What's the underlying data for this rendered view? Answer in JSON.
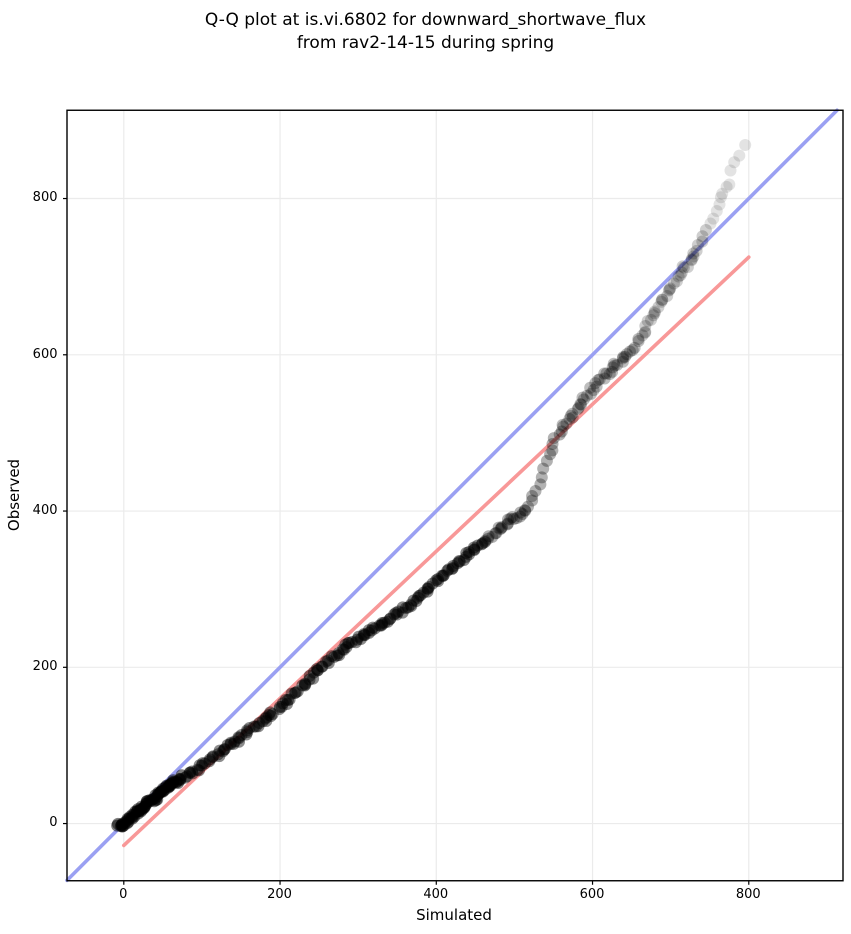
{
  "figure": {
    "title": "Q-Q plot at is.vi.6802 for downward_shortwave_flux\nfrom rav2-14-15 during spring"
  },
  "chart_data": {
    "type": "scatter",
    "subtype": "qq-plot",
    "title": "Q-Q plot at is.vi.6802 for downward_shortwave_flux from rav2-14-15 during spring",
    "xlabel": "Simulated",
    "ylabel": "Observed",
    "x_range": [
      -72.7,
      920.6
    ],
    "y_range": [
      -73.2,
      913.0
    ],
    "x_ticks": [
      0,
      200,
      400,
      600,
      800
    ],
    "y_ticks": [
      0,
      200,
      400,
      600,
      800
    ],
    "grid": true,
    "grid_color": "#ebebeb",
    "background_color": "#ffffff",
    "spine_color": "#000000",
    "identity_line": {
      "slope": 1,
      "intercept": 0,
      "color": "#9aa0f2",
      "width": 3.6
    },
    "fit_line": {
      "x1": 0,
      "y1": -28,
      "x2": 800,
      "y2": 725,
      "color": "#f89898",
      "width": 3.6
    },
    "marker": {
      "color": "#000000",
      "radius": 6,
      "step": 3.2,
      "dense_limit": 78,
      "dense_step": 1.1,
      "jitter": 2.2,
      "tail_alpha": 0.11,
      "alpha_zones": [
        [
          78,
          0.5
        ],
        [
          460,
          0.45
        ],
        [
          560,
          0.3
        ],
        [
          660,
          0.26
        ],
        [
          750,
          0.19
        ]
      ]
    },
    "quantile_curve": [
      [
        -7,
        -4
      ],
      [
        0,
        0
      ],
      [
        10,
        9
      ],
      [
        20,
        17
      ],
      [
        30,
        25
      ],
      [
        40,
        33
      ],
      [
        50,
        42
      ],
      [
        60,
        50
      ],
      [
        70,
        56
      ],
      [
        80,
        61
      ],
      [
        90,
        67
      ],
      [
        100,
        73
      ],
      [
        110,
        80
      ],
      [
        120,
        88
      ],
      [
        130,
        96
      ],
      [
        140,
        103
      ],
      [
        150,
        110
      ],
      [
        160,
        117
      ],
      [
        170,
        125
      ],
      [
        180,
        132
      ],
      [
        190,
        140
      ],
      [
        200,
        149
      ],
      [
        210,
        158
      ],
      [
        220,
        168
      ],
      [
        230,
        178
      ],
      [
        240,
        188
      ],
      [
        250,
        197
      ],
      [
        260,
        206
      ],
      [
        270,
        215
      ],
      [
        280,
        224
      ],
      [
        290,
        231
      ],
      [
        300,
        237
      ],
      [
        310,
        243
      ],
      [
        320,
        249
      ],
      [
        330,
        255
      ],
      [
        340,
        261
      ],
      [
        350,
        268
      ],
      [
        360,
        275
      ],
      [
        370,
        283
      ],
      [
        380,
        292
      ],
      [
        390,
        301
      ],
      [
        400,
        311
      ],
      [
        410,
        320
      ],
      [
        420,
        328
      ],
      [
        430,
        336
      ],
      [
        440,
        344
      ],
      [
        450,
        352
      ],
      [
        460,
        360
      ],
      [
        470,
        368
      ],
      [
        480,
        377
      ],
      [
        490,
        385
      ],
      [
        500,
        391
      ],
      [
        510,
        396
      ],
      [
        516,
        402
      ],
      [
        522,
        412
      ],
      [
        528,
        427
      ],
      [
        534,
        445
      ],
      [
        540,
        462
      ],
      [
        546,
        479
      ],
      [
        552,
        492
      ],
      [
        558,
        503
      ],
      [
        565,
        513
      ],
      [
        572,
        521
      ],
      [
        580,
        530
      ],
      [
        590,
        543
      ],
      [
        600,
        556
      ],
      [
        610,
        567
      ],
      [
        620,
        577
      ],
      [
        630,
        587
      ],
      [
        640,
        596
      ],
      [
        650,
        606
      ],
      [
        658,
        618
      ],
      [
        665,
        632
      ],
      [
        672,
        645
      ],
      [
        680,
        657
      ],
      [
        690,
        671
      ],
      [
        700,
        686
      ],
      [
        710,
        700
      ],
      [
        718,
        711
      ],
      [
        725,
        720
      ],
      [
        731,
        728
      ],
      [
        737,
        740
      ],
      [
        743,
        751
      ],
      [
        748,
        761
      ]
    ],
    "tail_points": [
      [
        751,
        769
      ],
      [
        755,
        775
      ],
      [
        759,
        783
      ],
      [
        762,
        792
      ],
      [
        764,
        801
      ],
      [
        766,
        807
      ],
      [
        771,
        814
      ],
      [
        775,
        819
      ],
      [
        777,
        836
      ],
      [
        781,
        846
      ],
      [
        788,
        855
      ],
      [
        795,
        869
      ]
    ]
  }
}
